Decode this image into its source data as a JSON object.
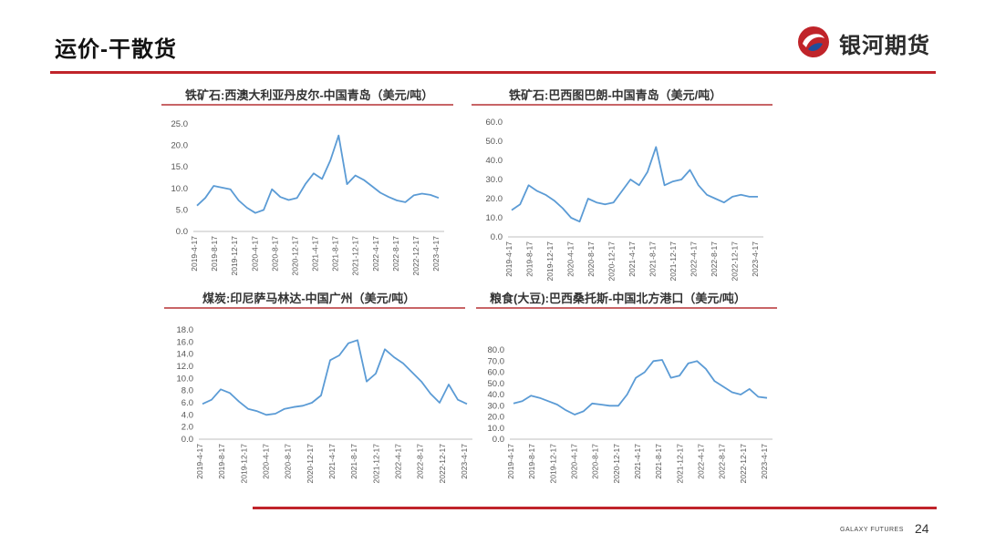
{
  "header": {
    "title": "运价-干散货",
    "brand_name": "银河期货"
  },
  "footer": {
    "brand": "GALAXY FUTURES",
    "page_number": "24"
  },
  "colors": {
    "accent": "#c0242a",
    "series": "#5b9bd5",
    "rule": "#c86466"
  },
  "chart_data": [
    {
      "type": "line",
      "title": "铁矿石:西澳大利亚丹皮尔-中国青岛（美元/吨）",
      "ylim": [
        0,
        25
      ],
      "yticks": [
        "0.0",
        "5.0",
        "10.0",
        "15.0",
        "20.0",
        "25.0"
      ],
      "xlabels": [
        "2019-4-17",
        "2019-8-17",
        "2019-12-17",
        "2020-4-17",
        "2020-8-17",
        "2020-12-17",
        "2021-4-17",
        "2021-8-17",
        "2021-12-17",
        "2022-4-17",
        "2022-8-17",
        "2022-12-17",
        "2023-4-17"
      ],
      "grid": false,
      "series": [
        {
          "values": [
            6.0,
            7.8,
            10.6,
            10.2,
            9.8,
            7.2,
            5.5,
            4.3,
            5.0,
            9.8,
            8.0,
            7.3,
            7.8,
            11.0,
            13.5,
            12.2,
            16.5,
            22.3,
            11.0,
            13.0,
            12.0,
            10.5,
            9.0,
            8.0,
            7.2,
            6.8,
            8.4,
            8.8,
            8.5,
            7.8
          ]
        }
      ]
    },
    {
      "type": "line",
      "title": "铁矿石:巴西图巴朗-中国青岛（美元/吨）",
      "ylim": [
        0,
        60
      ],
      "yticks": [
        "0.0",
        "10.0",
        "20.0",
        "30.0",
        "40.0",
        "50.0",
        "60.0"
      ],
      "xlabels": [
        "2019-4-17",
        "2019-8-17",
        "2019-12-17",
        "2020-4-17",
        "2020-8-17",
        "2020-12-17",
        "2021-4-17",
        "2021-8-17",
        "2021-12-17",
        "2022-4-17",
        "2022-8-17",
        "2022-12-17",
        "2023-4-17"
      ],
      "grid": false,
      "series": [
        {
          "values": [
            14,
            17,
            27,
            24,
            22,
            19,
            15,
            10,
            8,
            20,
            18,
            17,
            18,
            24,
            30,
            27,
            34,
            47,
            27,
            29,
            30,
            35,
            27,
            22,
            20,
            18,
            21,
            22,
            21,
            21
          ]
        }
      ]
    },
    {
      "type": "line",
      "title": "煤炭:印尼萨马林达-中国广州（美元/吨）",
      "ylim": [
        0,
        18
      ],
      "yticks": [
        "0.0",
        "2.0",
        "4.0",
        "6.0",
        "8.0",
        "10.0",
        "12.0",
        "14.0",
        "16.0",
        "18.0"
      ],
      "xlabels": [
        "2019-4-17",
        "2019-8-17",
        "2019-12-17",
        "2020-4-17",
        "2020-8-17",
        "2020-12-17",
        "2021-4-17",
        "2021-8-17",
        "2021-12-17",
        "2022-4-17",
        "2022-8-17",
        "2022-12-17",
        "2023-4-17"
      ],
      "grid": false,
      "series": [
        {
          "values": [
            5.8,
            6.5,
            8.2,
            7.6,
            6.2,
            5.0,
            4.6,
            4.0,
            4.2,
            5.0,
            5.3,
            5.5,
            6.0,
            7.2,
            13.0,
            13.8,
            15.8,
            16.3,
            9.5,
            10.8,
            14.8,
            13.5,
            12.5,
            11.0,
            9.5,
            7.5,
            6.0,
            9.0,
            6.5,
            5.8
          ]
        }
      ]
    },
    {
      "type": "line",
      "title": "粮食(大豆):巴西桑托斯-中国北方港口（美元/吨）",
      "ylim": [
        0,
        80
      ],
      "yticks": [
        "0.0",
        "10.0",
        "20.0",
        "30.0",
        "40.0",
        "50.0",
        "60.0",
        "70.0",
        "80.0"
      ],
      "xlabels": [
        "2019-4-17",
        "2019-8-17",
        "2019-12-17",
        "2020-4-17",
        "2020-8-17",
        "2020-12-17",
        "2021-4-17",
        "2021-8-17",
        "2021-12-17",
        "2022-4-17",
        "2022-8-17",
        "2022-12-17",
        "2023-4-17"
      ],
      "grid": false,
      "series": [
        {
          "values": [
            32,
            34,
            39,
            37,
            34,
            31,
            26,
            22,
            25,
            32,
            31,
            30,
            30,
            40,
            55,
            60,
            70,
            71,
            55,
            57,
            68,
            70,
            63,
            52,
            47,
            42,
            40,
            45,
            38,
            37
          ]
        }
      ]
    }
  ]
}
